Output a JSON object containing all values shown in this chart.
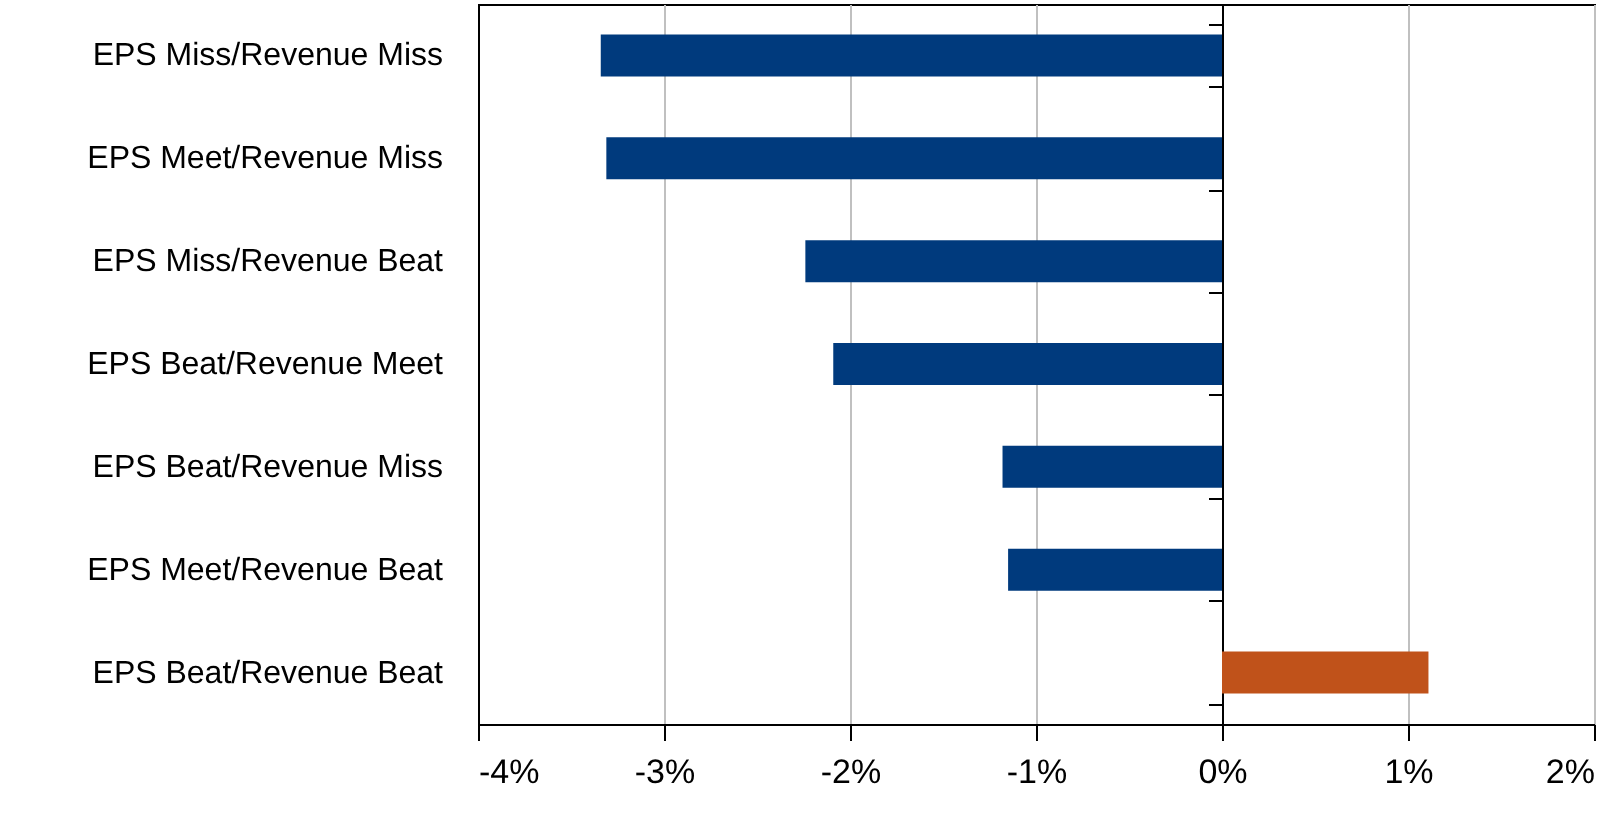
{
  "chart_data": {
    "type": "bar",
    "orientation": "horizontal",
    "categories": [
      "EPS Miss/Revenue Miss",
      "EPS Meet/Revenue Miss",
      "EPS Miss/Revenue Beat",
      "EPS Beat/Revenue Meet",
      "EPS Beat/Revenue Miss",
      "EPS Meet/Revenue Beat",
      "EPS Beat/Revenue Beat"
    ],
    "values": [
      -3.34,
      -3.31,
      -2.24,
      -2.09,
      -1.18,
      -1.15,
      1.11
    ],
    "colors": [
      "#003a7d",
      "#003a7d",
      "#003a7d",
      "#003a7d",
      "#003a7d",
      "#003a7d",
      "#c0521a"
    ],
    "xlim": [
      -4,
      2
    ],
    "xticks": [
      {
        "value": -4,
        "label": "-4%"
      },
      {
        "value": -3,
        "label": "-3%"
      },
      {
        "value": -2,
        "label": "-2%"
      },
      {
        "value": -1,
        "label": "-1%"
      },
      {
        "value": 0,
        "label": "0%"
      },
      {
        "value": 1,
        "label": "1%"
      },
      {
        "value": 2,
        "label": "2%"
      }
    ],
    "grid": "x"
  }
}
